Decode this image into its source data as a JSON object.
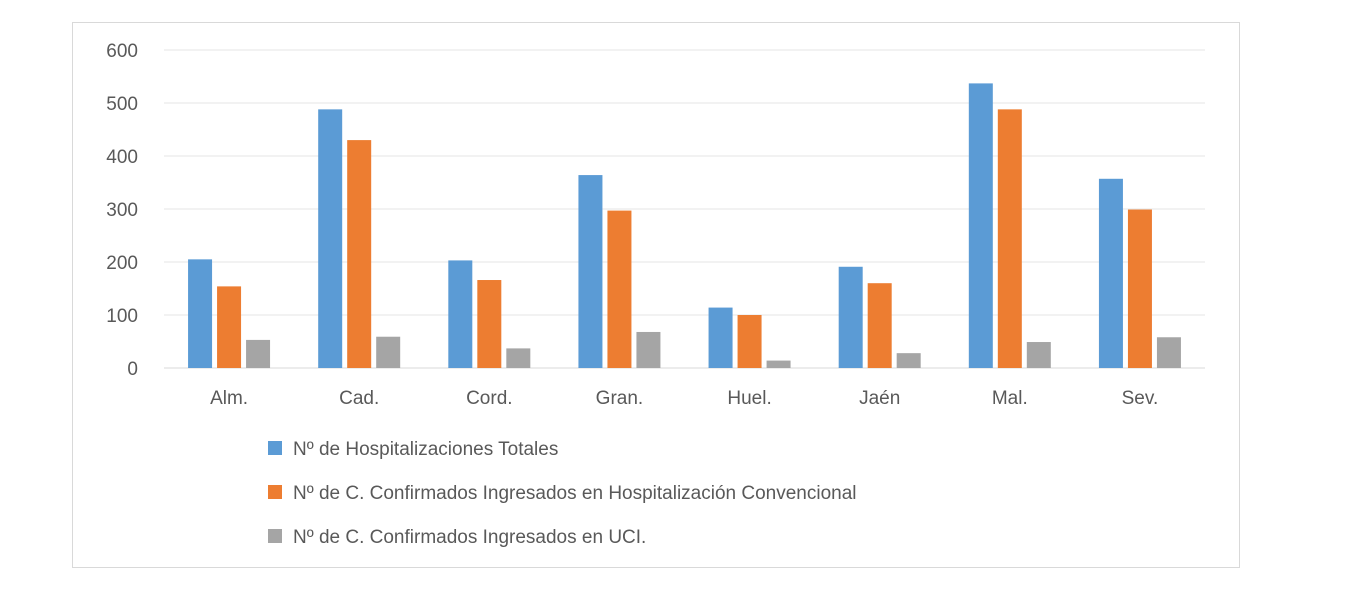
{
  "chart_data": {
    "type": "bar",
    "categories": [
      "Alm.",
      "Cad.",
      "Cord.",
      "Gran.",
      "Huel.",
      "Jaén",
      "Mal.",
      "Sev."
    ],
    "series": [
      {
        "name": "Nº de Hospitalizaciones Totales",
        "color": "#5b9bd5",
        "values": [
          205,
          488,
          203,
          364,
          114,
          191,
          537,
          357
        ]
      },
      {
        "name": "Nº de C. Confirmados Ingresados en Hospitalización Convencional",
        "color": "#ed7d31",
        "values": [
          154,
          430,
          166,
          297,
          100,
          160,
          488,
          299
        ]
      },
      {
        "name": "Nº de C. Confirmados Ingresados en UCI.",
        "color": "#a5a5a5",
        "values": [
          53,
          59,
          37,
          68,
          14,
          28,
          49,
          58
        ]
      }
    ],
    "yticks": [
      0,
      100,
      200,
      300,
      400,
      500,
      600
    ],
    "ylim": [
      0,
      600
    ],
    "grid": true,
    "legend": "bottom-left"
  }
}
